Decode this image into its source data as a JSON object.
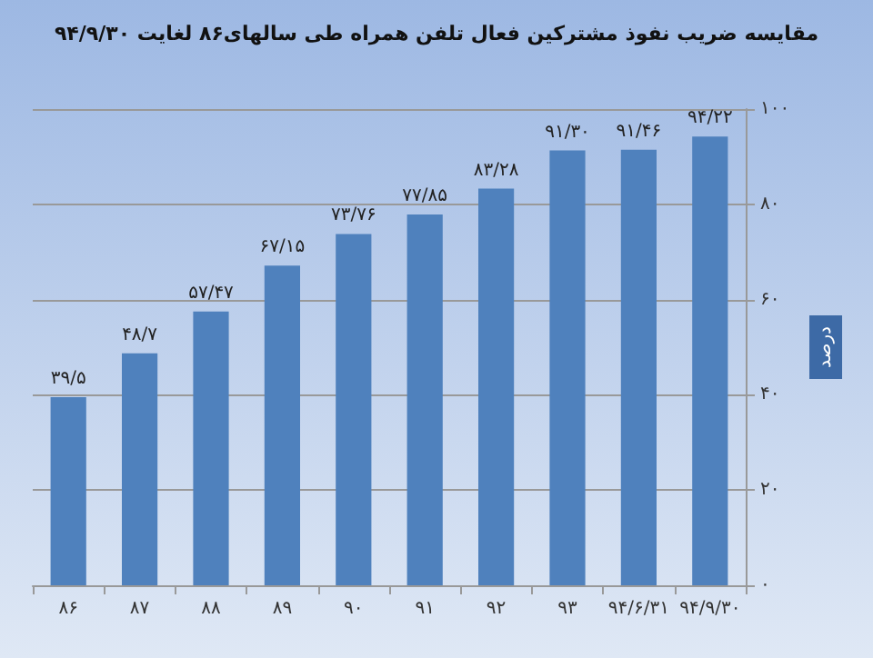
{
  "chart_data": {
    "type": "bar",
    "title": "مقایسه ضریب نفوذ مشترکین فعال تلفن همراه طی سالهای۸۶ لغایت ۹۴/۹/۳۰",
    "ylabel": "درصد",
    "categories": [
      "۸۶",
      "۸۷",
      "۸۸",
      "۸۹",
      "۹۰",
      "۹۱",
      "۹۲",
      "۹۳",
      "۹۴/۶/۳۱",
      "۹۴/۹/۳۰"
    ],
    "values": [
      39.5,
      48.7,
      57.47,
      67.15,
      73.76,
      77.85,
      83.28,
      91.3,
      91.46,
      94.22
    ],
    "value_labels": [
      "۳۹/۵",
      "۴۸/۷",
      "۵۷/۴۷",
      "۶۷/۱۵",
      "۷۳/۷۶",
      "۷۷/۸۵",
      "۸۳/۲۸",
      "۹۱/۳۰",
      "۹۱/۴۶",
      "۹۴/۲۲"
    ],
    "color": "#4f81bd",
    "ylim": [
      0,
      100
    ],
    "yticks": [
      {
        "value": 0,
        "label": "۰"
      },
      {
        "value": 20,
        "label": "۲۰"
      },
      {
        "value": 40,
        "label": "۴۰"
      },
      {
        "value": 60,
        "label": "۶۰"
      },
      {
        "value": 80,
        "label": "۸۰"
      },
      {
        "value": 100,
        "label": "۱۰۰"
      }
    ],
    "grid": "y"
  }
}
